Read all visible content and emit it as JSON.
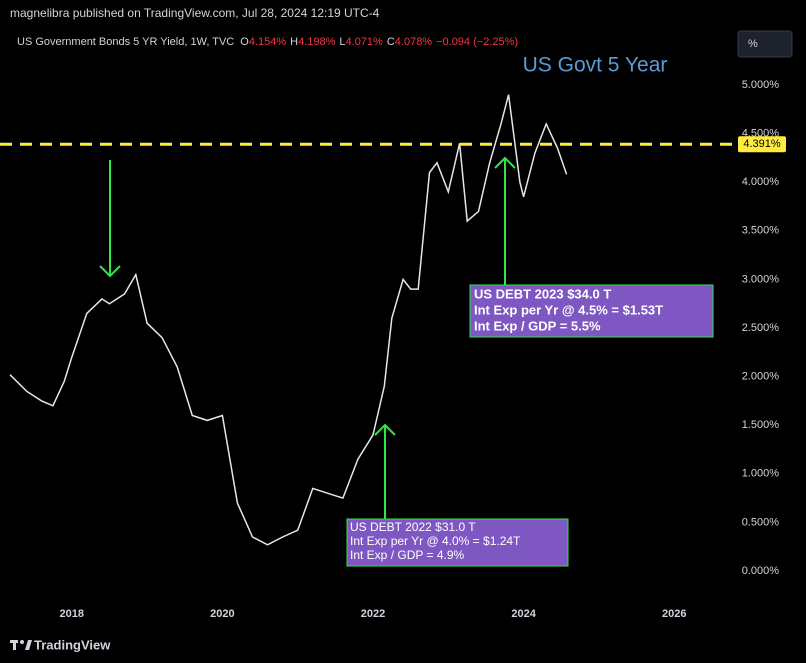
{
  "header": "magnelibra published on TradingView.com, Jul 28, 2024 12:19 UTC-4",
  "scale_button": "%",
  "footer": "TradingView",
  "chart_data": {
    "type": "line",
    "legend_title": "US Government Bonds 5 YR Yield, 1W, TVC",
    "ohlc": [
      {
        "key": "O",
        "text": "4.154%"
      },
      {
        "key": "H",
        "text": "4.198%"
      },
      {
        "key": "L",
        "text": "4.071%"
      },
      {
        "key": "C",
        "text": "4.078%"
      }
    ],
    "change": "−0.094 (−2.25%)",
    "title": "US Govt 5 Year",
    "color": "#e6e6e6",
    "x": [
      2017.18,
      2017.4,
      2017.6,
      2017.75,
      2017.9,
      2018.0,
      2018.2,
      2018.4,
      2018.5,
      2018.7,
      2018.85,
      2019.0,
      2019.2,
      2019.4,
      2019.6,
      2019.8,
      2020.0,
      2020.2,
      2020.4,
      2020.6,
      2020.8,
      2021.0,
      2021.2,
      2021.4,
      2021.6,
      2021.8,
      2022.0,
      2022.15,
      2022.25,
      2022.4,
      2022.5,
      2022.6,
      2022.75,
      2022.85,
      2023.0,
      2023.15,
      2023.25,
      2023.4,
      2023.55,
      2023.7,
      2023.8,
      2023.95,
      2024.0,
      2024.15,
      2024.3,
      2024.45,
      2024.57
    ],
    "values": [
      2.02,
      1.85,
      1.75,
      1.7,
      1.95,
      2.2,
      2.65,
      2.8,
      2.75,
      2.85,
      3.05,
      2.55,
      2.4,
      2.1,
      1.6,
      1.55,
      1.6,
      0.7,
      0.35,
      0.27,
      0.35,
      0.42,
      0.85,
      0.8,
      0.75,
      1.15,
      1.4,
      1.9,
      2.6,
      3.0,
      2.9,
      2.9,
      4.1,
      4.2,
      3.9,
      4.4,
      3.6,
      3.7,
      4.2,
      4.6,
      4.9,
      4.0,
      3.85,
      4.3,
      4.6,
      4.35,
      4.08
    ],
    "xlim": [
      2017.18,
      2026.74
    ],
    "xticks": [
      2018,
      2020,
      2022,
      2024,
      2026
    ],
    "ylim": [
      -0.298,
      5.566
    ],
    "yticks": [
      {
        "value": 0,
        "label": "0.000%"
      },
      {
        "value": 0.5,
        "label": "0.500%"
      },
      {
        "value": 1,
        "label": "1.000%"
      },
      {
        "value": 1.5,
        "label": "1.500%"
      },
      {
        "value": 2,
        "label": "2.000%"
      },
      {
        "value": 2.5,
        "label": "2.500%"
      },
      {
        "value": 3,
        "label": "3.000%"
      },
      {
        "value": 3.5,
        "label": "3.500%"
      },
      {
        "value": 4,
        "label": "4.000%"
      },
      {
        "value": 4.5,
        "label": "4.500%"
      },
      {
        "value": 5,
        "label": "5.000%"
      }
    ],
    "grid": false,
    "hline": {
      "value": 4.391,
      "label": "4.391%",
      "color": "#ffeb3b"
    },
    "annotations": [
      {
        "lines": [
          "US DEBT 2022 $31.0 T",
          "Int Exp per Yr @ 4.0% = $1.24T",
          "Int Exp / GDP = 4.9%"
        ]
      },
      {
        "lines": [
          "US DEBT 2023 $34.0 T",
          "Int Exp per Yr @ 4.5% = $1.53T",
          "Int Exp / GDP = 5.5%"
        ]
      }
    ]
  }
}
